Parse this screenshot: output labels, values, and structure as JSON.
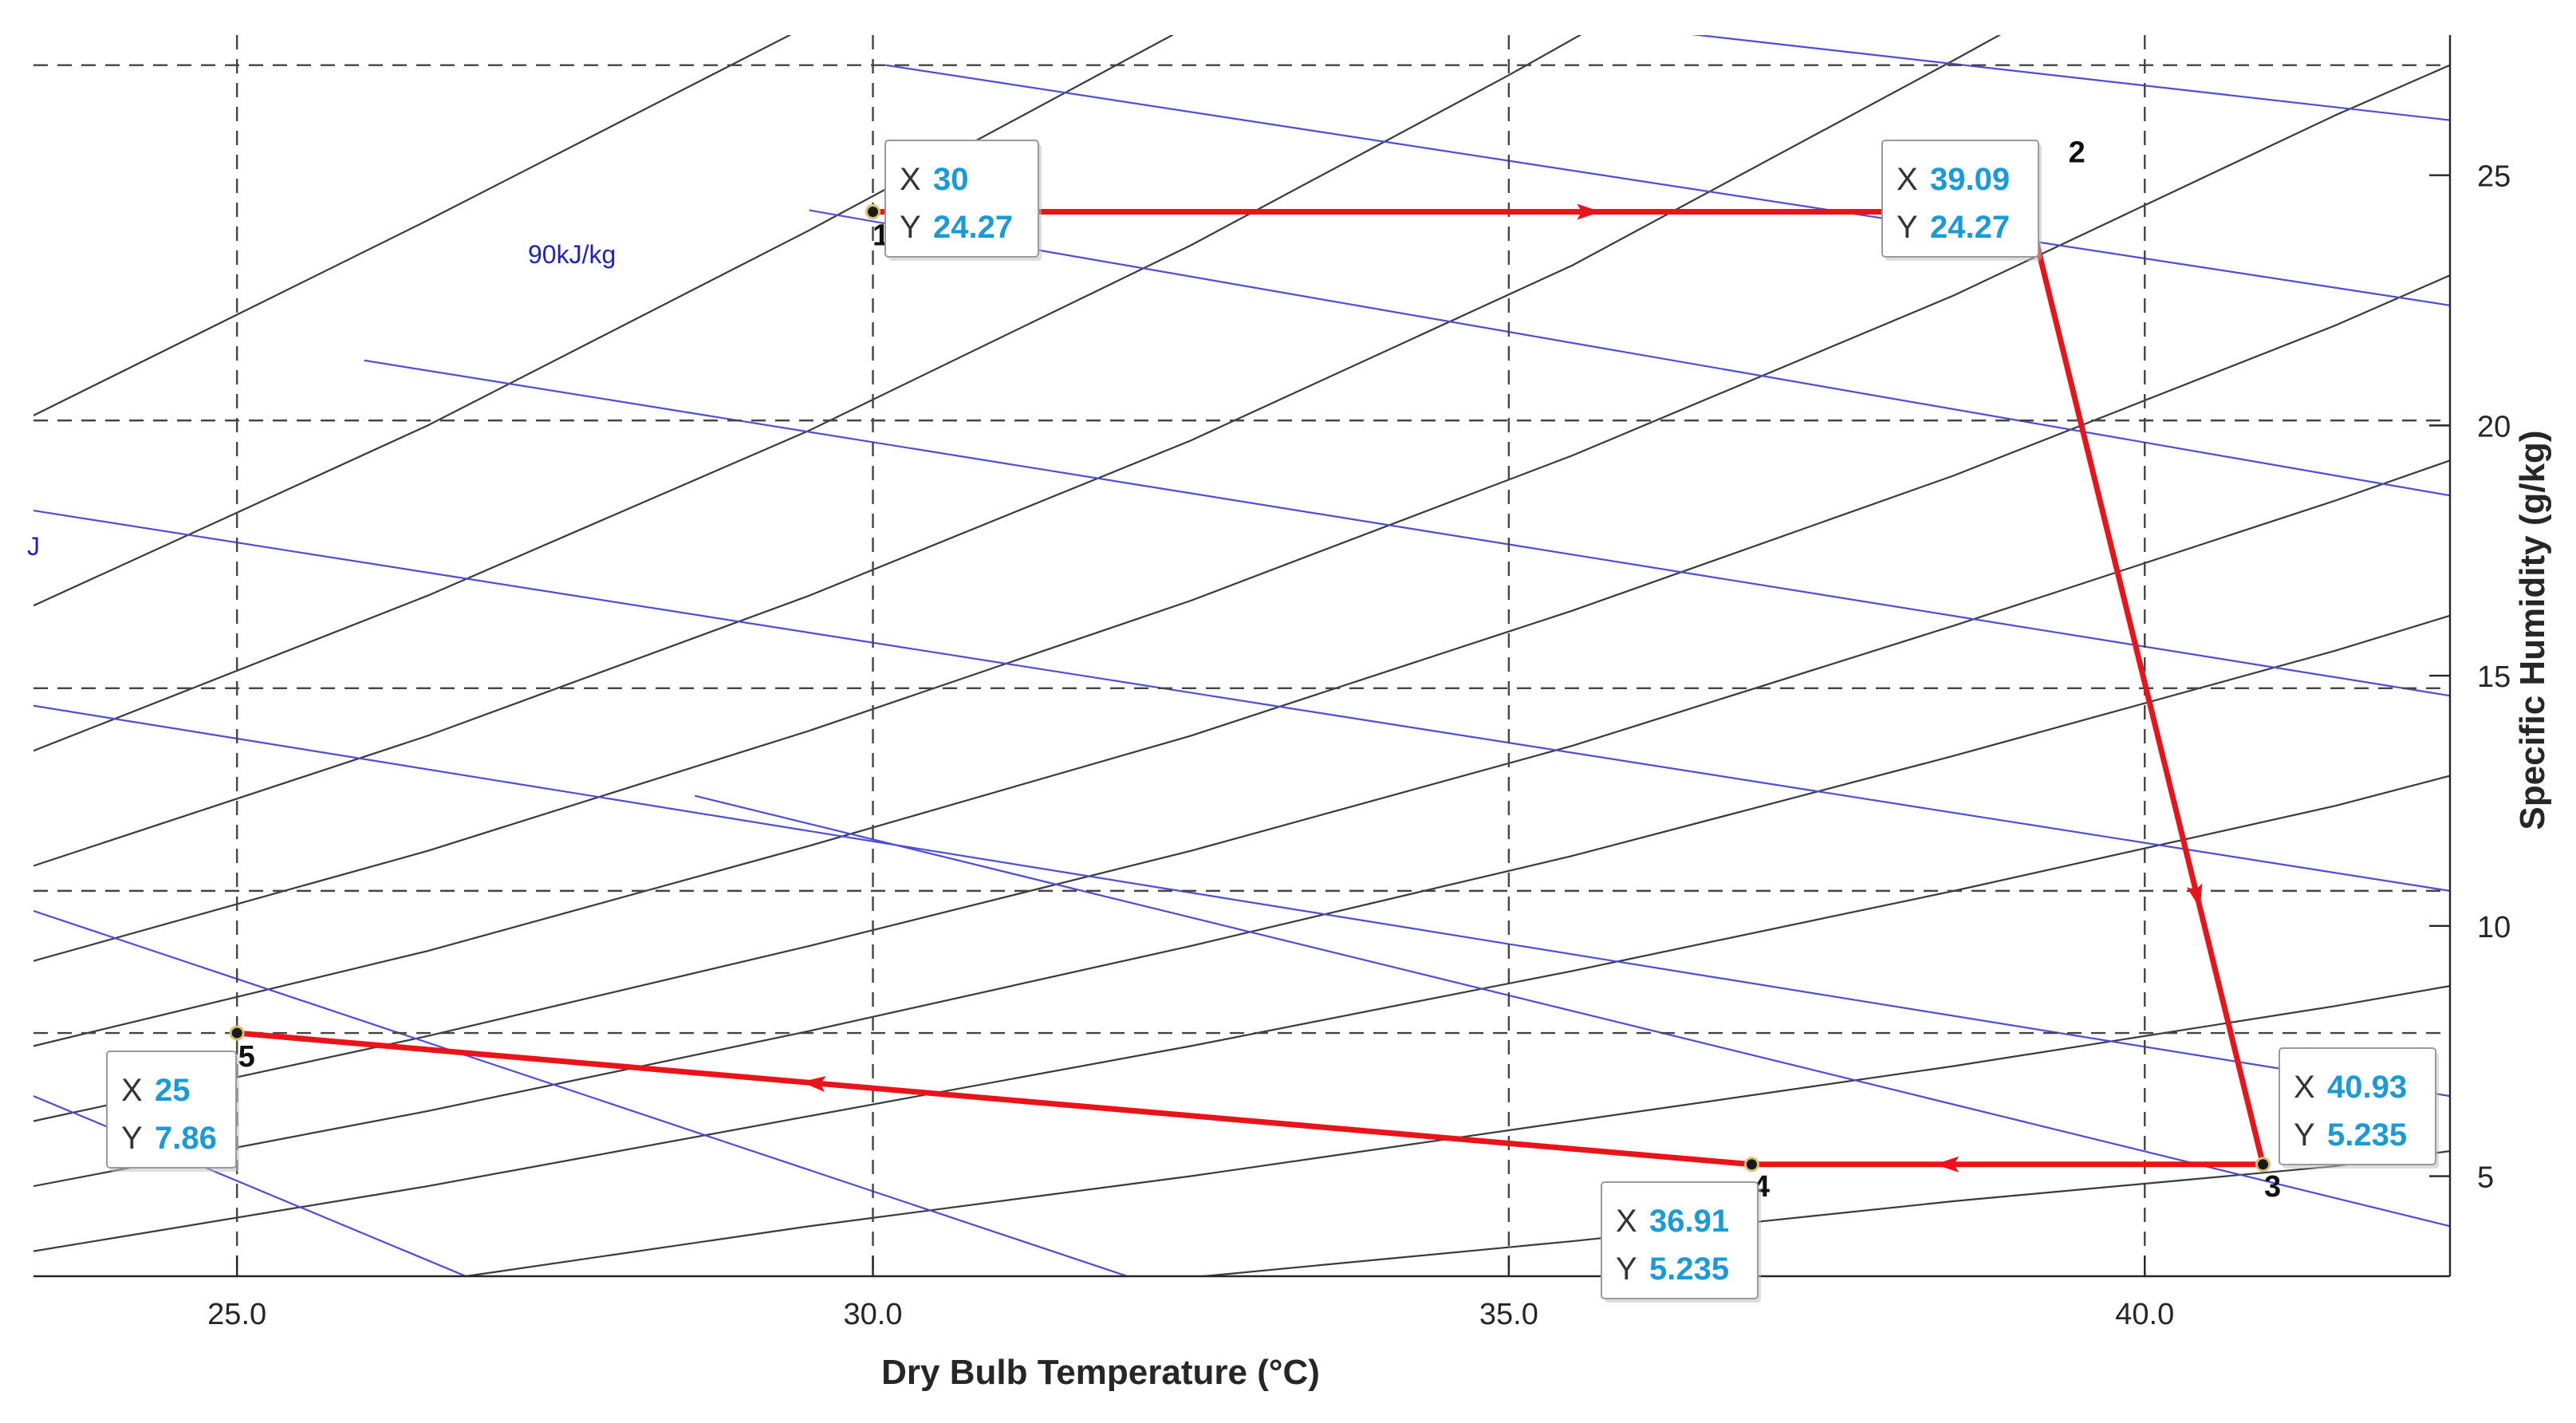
{
  "chart_data": {
    "type": "line",
    "title": "",
    "xlabel": "Dry Bulb Temperature (°C)",
    "ylabel": "Specific Humidity (g/kg)",
    "xlim": [
      23.4,
      42.4
    ],
    "ylim": [
      3.0,
      27.8
    ],
    "x_ticks": [
      25.0,
      30.0,
      35.0,
      40.0
    ],
    "x_tick_labels": [
      "25.0",
      "30.0",
      "35.0",
      "40.0"
    ],
    "y_ticks": [
      5,
      10,
      15,
      20,
      25
    ],
    "y_tick_labels": [
      "5",
      "10",
      "15",
      "20",
      "25"
    ],
    "enthalpy_line_label": "90kJ/kg",
    "enthalpy_label_clipped": "J",
    "process_points": [
      {
        "id": "1",
        "x": 30,
        "y": 24.27,
        "x_text": "30",
        "y_text": "24.27"
      },
      {
        "id": "2",
        "x": 39.09,
        "y": 24.27,
        "x_text": "39.09",
        "y_text": "24.27"
      },
      {
        "id": "3",
        "x": 40.93,
        "y": 5.235,
        "x_text": "40.93",
        "y_text": "5.235"
      },
      {
        "id": "4",
        "x": 36.91,
        "y": 5.235,
        "x_text": "36.91",
        "y_text": "5.235"
      },
      {
        "id": "5",
        "x": 25,
        "y": 7.86,
        "x_text": "25",
        "y_text": "7.86"
      }
    ],
    "process_path_order": [
      "1",
      "2",
      "3",
      "4",
      "5"
    ],
    "datatip_x_key": "X",
    "datatip_y_key": "Y",
    "reference_lines_x": [
      25,
      30,
      35,
      40
    ],
    "reference_lines_y": [
      7.86,
      10.7,
      14.75,
      20.1,
      27.2
    ],
    "enthalpy_lines": [
      {
        "x1": 23.4,
        "y1": 18.3,
        "x2": 42.4,
        "y2": 10.7
      },
      {
        "x1": 23.4,
        "y1": 14.4,
        "x2": 42.4,
        "y2": 6.6
      },
      {
        "x1": 23.4,
        "y1": 10.3,
        "x2": 32.0,
        "y2": 3.0
      },
      {
        "x1": 23.4,
        "y1": 6.6,
        "x2": 26.8,
        "y2": 3.0
      },
      {
        "x1": 26.0,
        "y1": 21.3,
        "x2": 42.4,
        "y2": 14.6
      },
      {
        "x1": 29.5,
        "y1": 24.3,
        "x2": 42.4,
        "y2": 18.6
      },
      {
        "x1": 30.1,
        "y1": 27.2,
        "x2": 42.4,
        "y2": 22.4
      },
      {
        "x1": 35.8,
        "y1": 28.0,
        "x2": 42.4,
        "y2": 26.1
      },
      {
        "x1": 28.6,
        "y1": 12.6,
        "x2": 42.4,
        "y2": 4.0
      }
    ],
    "humidity_curves": [
      [
        [
          23.4,
          20.2
        ],
        [
          26.5,
          24.1
        ],
        [
          29.5,
          28.0
        ]
      ],
      [
        [
          23.4,
          16.4
        ],
        [
          26.5,
          20.0
        ],
        [
          29.5,
          23.9
        ],
        [
          32.5,
          28.0
        ]
      ],
      [
        [
          23.4,
          13.5
        ],
        [
          26.5,
          16.6
        ],
        [
          29.5,
          19.9
        ],
        [
          32.5,
          23.6
        ],
        [
          35.0,
          27.0
        ],
        [
          35.7,
          28.0
        ]
      ],
      [
        [
          23.4,
          11.2
        ],
        [
          26.5,
          13.8
        ],
        [
          29.5,
          16.6
        ],
        [
          32.5,
          19.7
        ],
        [
          35.5,
          23.2
        ],
        [
          38.5,
          27.3
        ],
        [
          39.0,
          28.0
        ]
      ],
      [
        [
          23.4,
          9.3
        ],
        [
          26.5,
          11.5
        ],
        [
          29.5,
          13.9
        ],
        [
          32.5,
          16.5
        ],
        [
          35.5,
          19.4
        ],
        [
          38.5,
          22.6
        ],
        [
          41.5,
          26.2
        ],
        [
          42.4,
          27.2
        ]
      ],
      [
        [
          23.4,
          7.6
        ],
        [
          26.5,
          9.5
        ],
        [
          29.5,
          11.6
        ],
        [
          32.5,
          13.8
        ],
        [
          35.5,
          16.3
        ],
        [
          38.5,
          19.0
        ],
        [
          41.5,
          22.0
        ],
        [
          42.4,
          23.0
        ]
      ],
      [
        [
          23.4,
          6.1
        ],
        [
          26.5,
          7.8
        ],
        [
          29.5,
          9.6
        ],
        [
          32.5,
          11.5
        ],
        [
          35.5,
          13.6
        ],
        [
          38.5,
          16.0
        ],
        [
          41.5,
          18.5
        ],
        [
          42.4,
          19.3
        ]
      ],
      [
        [
          23.4,
          4.8
        ],
        [
          26.5,
          6.3
        ],
        [
          29.5,
          7.9
        ],
        [
          32.5,
          9.6
        ],
        [
          35.5,
          11.4
        ],
        [
          38.5,
          13.4
        ],
        [
          41.5,
          15.5
        ],
        [
          42.4,
          16.2
        ]
      ],
      [
        [
          23.4,
          3.5
        ],
        [
          26.5,
          4.8
        ],
        [
          29.5,
          6.2
        ],
        [
          32.5,
          7.6
        ],
        [
          35.5,
          9.1
        ],
        [
          38.5,
          10.7
        ],
        [
          41.5,
          12.4
        ],
        [
          42.4,
          13.0
        ]
      ],
      [
        [
          26.8,
          3.0
        ],
        [
          29.5,
          4.0
        ],
        [
          32.5,
          5.0
        ],
        [
          35.5,
          6.1
        ],
        [
          38.5,
          7.2
        ],
        [
          41.5,
          8.4
        ],
        [
          42.4,
          8.8
        ]
      ],
      [
        [
          32.6,
          3.0
        ],
        [
          35.5,
          3.7
        ],
        [
          38.5,
          4.5
        ],
        [
          41.5,
          5.2
        ],
        [
          42.4,
          5.5
        ]
      ]
    ]
  }
}
